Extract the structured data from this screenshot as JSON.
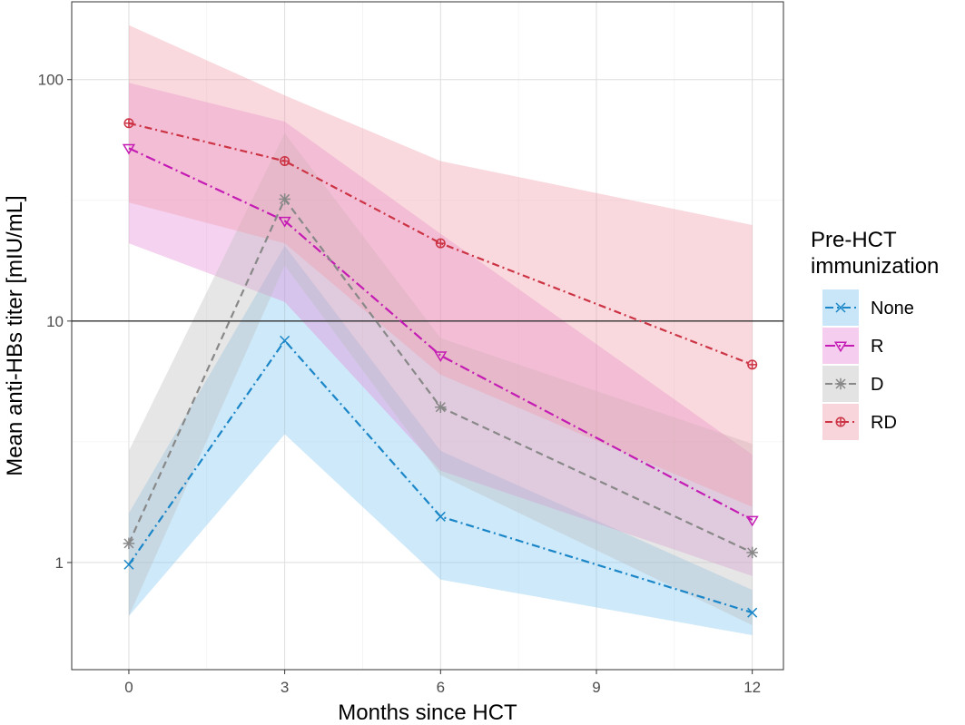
{
  "chart_data": {
    "type": "line",
    "title": "",
    "xlabel": "Months since HCT",
    "ylabel": "Mean anti-HBs titer [mIU/mL]",
    "yscale": "log10",
    "xlim": [
      -1.1,
      12.6
    ],
    "ylim": [
      0.36,
      210
    ],
    "x_ticks": [
      0,
      3,
      6,
      9,
      12
    ],
    "x_tick_labels": [
      "0",
      "3",
      "6",
      "9",
      "12"
    ],
    "y_ticks": [
      1,
      10,
      100
    ],
    "y_tick_labels": [
      "1",
      "10",
      "100"
    ],
    "grid": true,
    "reference_line": {
      "y": 10
    },
    "legend": {
      "title": "Pre-HCT\nimmunization",
      "position": "right"
    },
    "x": [
      0,
      3,
      6,
      12
    ],
    "series": [
      {
        "name": "None",
        "color": "#1a86c8",
        "fill": "#7fc4ee",
        "dash": "9,4,2,4",
        "marker": "x",
        "values": [
          0.98,
          8.3,
          1.55,
          0.62
        ],
        "lower": [
          0.6,
          3.4,
          0.85,
          0.5
        ],
        "upper": [
          1.6,
          20.5,
          2.9,
          0.77
        ]
      },
      {
        "name": "R",
        "color": "#c41bb4",
        "fill": "#e68ad8",
        "dash": "11,4,2,4",
        "marker": "triangle",
        "values": [
          52,
          26,
          7.2,
          1.5
        ],
        "lower": [
          21,
          12,
          2.4,
          0.88
        ],
        "upper": [
          97,
          67,
          23,
          2.8
        ]
      },
      {
        "name": "D",
        "color": "#888888",
        "fill": "#bdbdbd",
        "dash": "8,5",
        "marker": "asterisk",
        "values": [
          1.2,
          32,
          4.4,
          1.1
        ],
        "lower": [
          0.6,
          17,
          2.3,
          0.55
        ],
        "upper": [
          2.9,
          60,
          8.5,
          3.1
        ]
      },
      {
        "name": "RD",
        "color": "#cc3344",
        "fill": "#ee9aa8",
        "dash": "8,4,2,4",
        "marker": "circle-plus",
        "values": [
          66,
          46,
          21,
          6.6
        ],
        "lower": [
          31,
          21,
          6,
          1.7
        ],
        "upper": [
          168,
          86,
          46,
          25
        ]
      }
    ]
  }
}
